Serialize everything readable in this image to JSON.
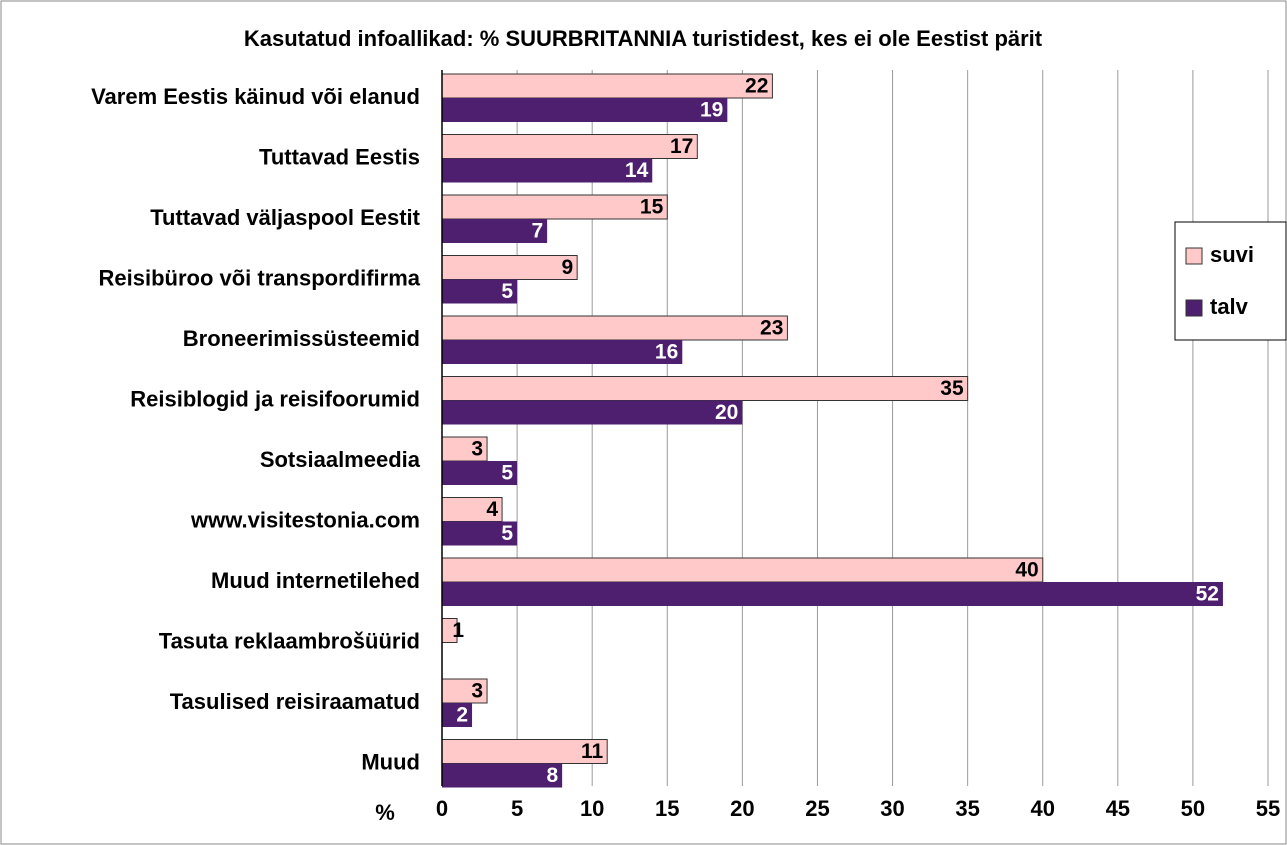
{
  "chart_data": {
    "type": "hbar",
    "title": "Kasutatud infoallikad: % SUURBRITANNIA turistidest, kes ei ole Eestist pärit",
    "x_label": "%",
    "categories": [
      "Varem Eestis käinud või elanud",
      "Tuttavad Eestis",
      "Tuttavad väljaspool Eestit",
      "Reisibüroo või transpordifirma",
      "Broneerimissüsteemid",
      "Reisiblogid ja reisifoorumid",
      "Sotsiaalmeedia",
      "www.visitestonia.com",
      "Muud internetilehed",
      "Tasuta reklaambrošüürid",
      "Tasulised reisiraamatud",
      "Muud"
    ],
    "series": [
      {
        "name": "suvi",
        "color": "#ffc9c9",
        "label_color": "#000000",
        "values": [
          22,
          17,
          15,
          9,
          23,
          35,
          3,
          4,
          40,
          1,
          3,
          11
        ]
      },
      {
        "name": "talv",
        "color": "#4d1f6e",
        "label_color": "#ffffff",
        "values": [
          19,
          14,
          7,
          5,
          16,
          20,
          5,
          5,
          52,
          null,
          2,
          8
        ]
      }
    ],
    "xlim": [
      0,
      55
    ],
    "xticks": [
      0,
      5,
      10,
      15,
      20,
      25,
      30,
      35,
      40,
      45,
      50,
      55
    ],
    "grid": true,
    "legend": "right"
  }
}
